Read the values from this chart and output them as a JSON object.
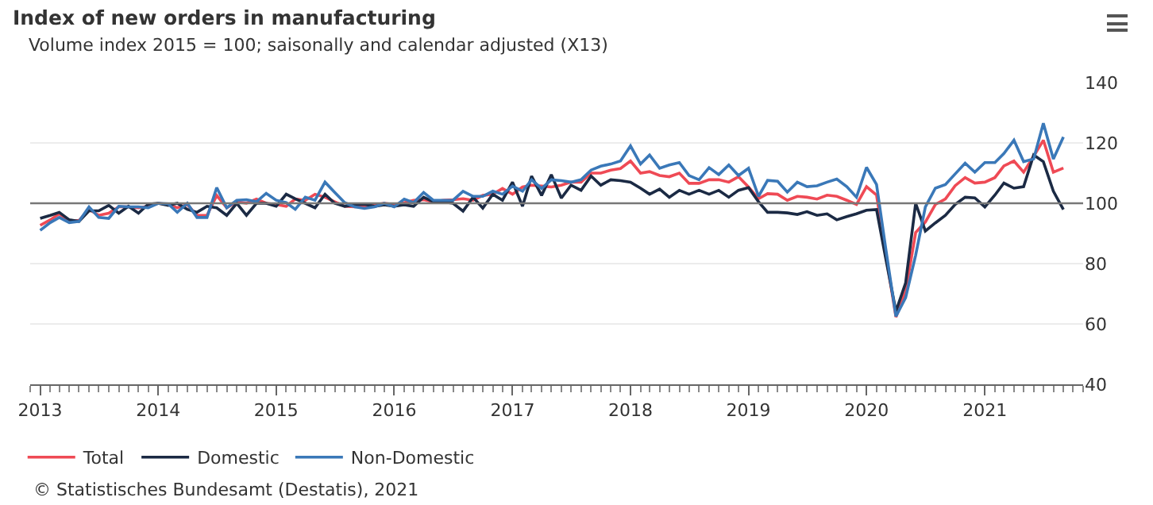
{
  "chart_data": {
    "type": "line",
    "title": "Index of new orders in manufacturing",
    "subtitle": "Volume index 2015 = 100; saisonally and calendar adjusted (X13)",
    "x": [
      "2013-01",
      "2013-02",
      "2013-03",
      "2013-04",
      "2013-05",
      "2013-06",
      "2013-07",
      "2013-08",
      "2013-09",
      "2013-10",
      "2013-11",
      "2013-12",
      "2014-01",
      "2014-02",
      "2014-03",
      "2014-04",
      "2014-05",
      "2014-06",
      "2014-07",
      "2014-08",
      "2014-09",
      "2014-10",
      "2014-11",
      "2014-12",
      "2015-01",
      "2015-02",
      "2015-03",
      "2015-04",
      "2015-05",
      "2015-06",
      "2015-07",
      "2015-08",
      "2015-09",
      "2015-10",
      "2015-11",
      "2015-12",
      "2016-01",
      "2016-02",
      "2016-03",
      "2016-04",
      "2016-05",
      "2016-06",
      "2016-07",
      "2016-08",
      "2016-09",
      "2016-10",
      "2016-11",
      "2016-12",
      "2017-01",
      "2017-02",
      "2017-03",
      "2017-04",
      "2017-05",
      "2017-06",
      "2017-07",
      "2017-08",
      "2017-09",
      "2017-10",
      "2017-11",
      "2017-12",
      "2018-01",
      "2018-02",
      "2018-03",
      "2018-04",
      "2018-05",
      "2018-06",
      "2018-07",
      "2018-08",
      "2018-09",
      "2018-10",
      "2018-11",
      "2018-12",
      "2019-01",
      "2019-02",
      "2019-03",
      "2019-04",
      "2019-05",
      "2019-06",
      "2019-07",
      "2019-08",
      "2019-09",
      "2019-10",
      "2019-11",
      "2019-12",
      "2020-01",
      "2020-02",
      "2020-03",
      "2020-04",
      "2020-05",
      "2020-06",
      "2020-07",
      "2020-08",
      "2020-09",
      "2020-10",
      "2020-11",
      "2020-12",
      "2021-01",
      "2021-02",
      "2021-03",
      "2021-04",
      "2021-05",
      "2021-06",
      "2021-07",
      "2021-08",
      "2021-09"
    ],
    "series": [
      {
        "name": "Total",
        "color": "#ef4a55",
        "values": [
          92.7,
          94.5,
          96.5,
          94,
          94.3,
          98,
          96,
          96.7,
          98.8,
          98.8,
          98.5,
          99,
          100,
          99.6,
          98.5,
          99.6,
          96,
          96,
          102.6,
          98.5,
          100.5,
          100,
          101.4,
          100,
          99.6,
          99,
          101.4,
          101,
          103,
          102,
          100.5,
          99,
          98.8,
          99,
          99.5,
          100,
          99.6,
          100.2,
          101,
          101.2,
          100.5,
          101,
          101.2,
          101.5,
          101,
          102.6,
          103,
          104.9,
          103,
          105.4,
          106,
          105.7,
          105.4,
          106,
          107,
          107,
          110,
          110,
          111,
          111.5,
          114,
          110,
          110.5,
          109.2,
          108.8,
          110,
          106.6,
          106.6,
          107.8,
          107.8,
          107,
          108.8,
          105.4,
          101.5,
          103.2,
          103,
          101,
          102.3,
          102,
          101.4,
          102.7,
          102.3,
          101,
          99.6,
          105.5,
          102.7,
          82.8,
          62.3,
          70.8,
          90.3,
          93.8,
          99.6,
          101.4,
          105.8,
          108.5,
          106.7,
          107,
          108.5,
          112.4,
          114,
          110.3,
          115.6,
          120.9,
          110.3,
          111.7
        ]
      },
      {
        "name": "Domestic",
        "color": "#1b2a44",
        "values": [
          95,
          96,
          97,
          94.5,
          94,
          97.5,
          97.5,
          99.3,
          96.7,
          99,
          96.7,
          99.7,
          100,
          99.3,
          100,
          98,
          97,
          99,
          98.5,
          96,
          100,
          96,
          100,
          100,
          99,
          103,
          101.5,
          100,
          98.5,
          103,
          100,
          99,
          99.5,
          99.7,
          99,
          99.5,
          99,
          99.5,
          99,
          102,
          100.5,
          100.5,
          100,
          97.4,
          102,
          98.4,
          103,
          101,
          107,
          99,
          109,
          102.6,
          109.5,
          101.7,
          106,
          104.3,
          109,
          106,
          107.8,
          107.5,
          107,
          105,
          103,
          104.7,
          102,
          104.3,
          103,
          104.3,
          103,
          104.3,
          102,
          104.3,
          105.2,
          100.5,
          97,
          97,
          96.8,
          96.3,
          97.2,
          96,
          96.5,
          94.5,
          95.6,
          96.5,
          97.7,
          97.9,
          81.4,
          64.2,
          73.6,
          100,
          90.8,
          93.5,
          96,
          99.6,
          102,
          101.8,
          98.8,
          102.7,
          106.7,
          105,
          105.5,
          116,
          113.8,
          104,
          97.9
        ]
      },
      {
        "name": "Non-Domestic",
        "color": "#3a78b8",
        "values": [
          91,
          93.6,
          95.3,
          93.6,
          94,
          98.8,
          95.3,
          95,
          99,
          98.8,
          98.8,
          98.5,
          100,
          99.8,
          97,
          100,
          95.3,
          95.3,
          105.2,
          98.5,
          101,
          101.2,
          100.5,
          103.3,
          101,
          100.2,
          98,
          102,
          101,
          107,
          103.6,
          100.2,
          98.8,
          98.3,
          98.8,
          100,
          98.8,
          101.4,
          100.2,
          103.6,
          101,
          101,
          101,
          104,
          102.3,
          102.3,
          104,
          103,
          105.7,
          104,
          107.8,
          104.9,
          107.8,
          107.5,
          107,
          107.8,
          111,
          112.3,
          113,
          114,
          119,
          113,
          116,
          111.6,
          112.7,
          113.5,
          109.2,
          107.8,
          111.8,
          109.5,
          112.7,
          109.2,
          111.6,
          102.3,
          107.6,
          107.3,
          103.7,
          107,
          105.5,
          105.8,
          107,
          108,
          105.5,
          102,
          111.9,
          106.2,
          84.6,
          62.5,
          68.7,
          82.8,
          98.8,
          105,
          106.2,
          109.7,
          113.3,
          110.3,
          113.5,
          113.5,
          116.5,
          120.9,
          113.8,
          114.7,
          126.5,
          114.7,
          122
        ]
      }
    ],
    "xlim": [
      "2012-12",
      "2021-11"
    ],
    "xticks": [
      "2013",
      "2014",
      "2015",
      "2016",
      "2017",
      "2018",
      "2019",
      "2020",
      "2021"
    ],
    "ylim": [
      40,
      140
    ],
    "yticks": [
      40,
      60,
      80,
      100,
      120,
      140
    ],
    "grid": "y",
    "legend": "bottom left",
    "ref_lines": [
      {
        "axis": "y",
        "value": 100,
        "color": "#777777"
      }
    ],
    "annotations": [
      "© Statistisches Bundesamt (Destatis), 2021"
    ]
  }
}
